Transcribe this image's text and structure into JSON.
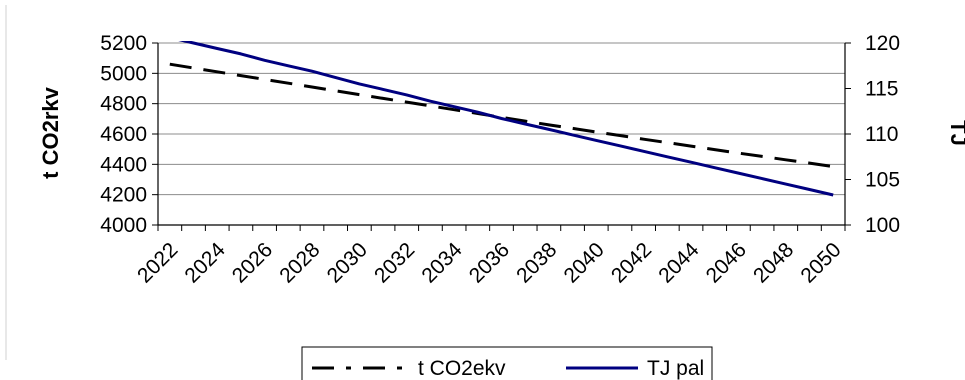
{
  "chart_data": {
    "type": "line",
    "x": [
      2022,
      2023,
      2024,
      2025,
      2026,
      2027,
      2028,
      2029,
      2030,
      2031,
      2032,
      2033,
      2034,
      2035,
      2036,
      2037,
      2038,
      2039,
      2040,
      2041,
      2042,
      2043,
      2044,
      2045,
      2046,
      2047,
      2048,
      2049,
      2050
    ],
    "x_tick_labels": [
      "2022",
      "2024",
      "2026",
      "2028",
      "2030",
      "2032",
      "2034",
      "2036",
      "2038",
      "2040",
      "2042",
      "2044",
      "2046",
      "2048",
      "2050"
    ],
    "series": [
      {
        "name": "t CO2ekv",
        "axis": "left",
        "color": "#000000",
        "dash": "dashed",
        "values": [
          5060,
          5035,
          5010,
          4985,
          4960,
          4935,
          4910,
          4885,
          4860,
          4835,
          4810,
          4785,
          4760,
          4735,
          4710,
          4685,
          4660,
          4637,
          4613,
          4590,
          4566,
          4543,
          4520,
          4497,
          4474,
          4452,
          4430,
          4408,
          4385
        ]
      },
      {
        "name": "TJ pal",
        "axis": "right",
        "color": "#000080",
        "dash": "solid",
        "values": [
          120.6,
          120.0,
          119.4,
          118.8,
          118.1,
          117.5,
          116.9,
          116.2,
          115.5,
          114.9,
          114.3,
          113.6,
          113.0,
          112.4,
          111.7,
          111.1,
          110.5,
          109.9,
          109.3,
          108.7,
          108.1,
          107.5,
          106.9,
          106.3,
          105.7,
          105.1,
          104.5,
          103.9,
          103.3
        ]
      }
    ],
    "ylabel": "t CO2rkv",
    "ylim": [
      4000,
      5200
    ],
    "y_ticks": [
      4000,
      4200,
      4400,
      4600,
      4800,
      5000,
      5200
    ],
    "y2label": "TJ",
    "y2lim": [
      100,
      120
    ],
    "y2_ticks": [
      100,
      105,
      110,
      115,
      120
    ],
    "grid": true,
    "legend_position": "bottom"
  }
}
